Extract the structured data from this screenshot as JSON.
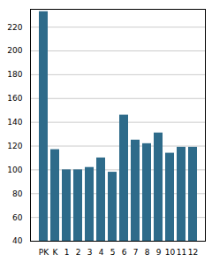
{
  "chart_data": {
    "type": "bar",
    "categories": [
      "PK",
      "K",
      "1",
      "2",
      "3",
      "4",
      "5",
      "6",
      "7",
      "8",
      "9",
      "10",
      "11",
      "12"
    ],
    "values": [
      233,
      117,
      100,
      100,
      102,
      110,
      98,
      146,
      125,
      122,
      131,
      114,
      119,
      119
    ],
    "color": "#2e6b8a",
    "ylim": [
      40,
      235
    ],
    "yticks": [
      40,
      60,
      80,
      100,
      120,
      140,
      160,
      180,
      200,
      220
    ],
    "grid": true
  }
}
